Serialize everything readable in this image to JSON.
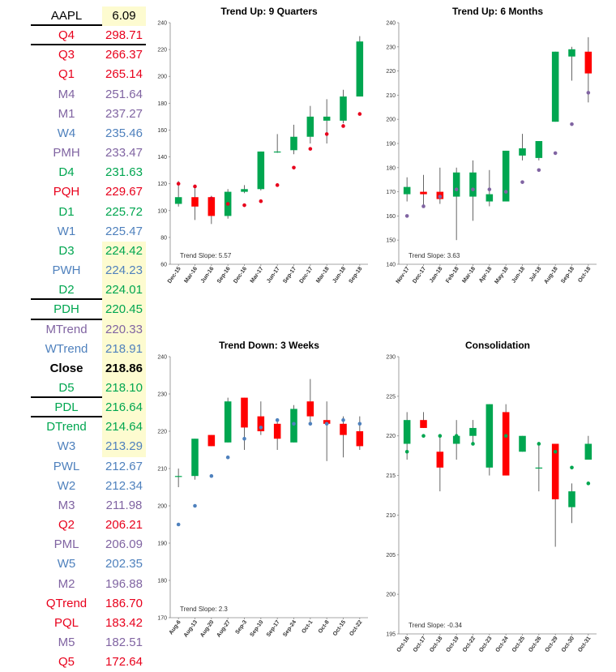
{
  "levels": {
    "header": {
      "name": "AAPL",
      "value": "6.09"
    },
    "rows": [
      {
        "name": "Q4",
        "value": "298.71",
        "color": "#e8001c",
        "hl": false,
        "sep": true
      },
      {
        "name": "Q3",
        "value": "266.37",
        "color": "#e8001c",
        "hl": false
      },
      {
        "name": "Q1",
        "value": "265.14",
        "color": "#e8001c",
        "hl": false
      },
      {
        "name": "M4",
        "value": "251.64",
        "color": "#8064a2",
        "hl": false
      },
      {
        "name": "M1",
        "value": "237.27",
        "color": "#8064a2",
        "hl": false
      },
      {
        "name": "W4",
        "value": "235.46",
        "color": "#4f81bd",
        "hl": false
      },
      {
        "name": "PMH",
        "value": "233.47",
        "color": "#8064a2",
        "hl": false
      },
      {
        "name": "D4",
        "value": "231.63",
        "color": "#00a650",
        "hl": false
      },
      {
        "name": "PQH",
        "value": "229.67",
        "color": "#e8001c",
        "hl": false
      },
      {
        "name": "D1",
        "value": "225.72",
        "color": "#00a650",
        "hl": false
      },
      {
        "name": "W1",
        "value": "225.47",
        "color": "#4f81bd",
        "hl": false
      },
      {
        "name": "D3",
        "value": "224.42",
        "color": "#00a650",
        "hl": true
      },
      {
        "name": "PWH",
        "value": "224.23",
        "color": "#4f81bd",
        "hl": true
      },
      {
        "name": "D2",
        "value": "224.01",
        "color": "#00a650",
        "hl": true,
        "sep": true
      },
      {
        "name": "PDH",
        "value": "220.45",
        "color": "#00a650",
        "hl": true,
        "sep": true
      },
      {
        "name": "MTrend",
        "value": "220.33",
        "color": "#8064a2",
        "hl": true
      },
      {
        "name": "WTrend",
        "value": "218.91",
        "color": "#4f81bd",
        "hl": true
      },
      {
        "name": "Close",
        "value": "218.86",
        "color": "#000000",
        "hl": true,
        "bold": true
      },
      {
        "name": "D5",
        "value": "218.10",
        "color": "#00a650",
        "hl": true,
        "sep": true
      },
      {
        "name": "PDL",
        "value": "216.64",
        "color": "#00a650",
        "hl": true,
        "sep": true
      },
      {
        "name": "DTrend",
        "value": "214.64",
        "color": "#00a650",
        "hl": true
      },
      {
        "name": "W3",
        "value": "213.29",
        "color": "#4f81bd",
        "hl": true
      },
      {
        "name": "PWL",
        "value": "212.67",
        "color": "#4f81bd",
        "hl": false
      },
      {
        "name": "W2",
        "value": "212.34",
        "color": "#4f81bd",
        "hl": false
      },
      {
        "name": "M3",
        "value": "211.98",
        "color": "#8064a2",
        "hl": false
      },
      {
        "name": "Q2",
        "value": "206.21",
        "color": "#e8001c",
        "hl": false
      },
      {
        "name": "PML",
        "value": "206.09",
        "color": "#8064a2",
        "hl": false
      },
      {
        "name": "W5",
        "value": "202.35",
        "color": "#4f81bd",
        "hl": false
      },
      {
        "name": "M2",
        "value": "196.88",
        "color": "#8064a2",
        "hl": false
      },
      {
        "name": "QTrend",
        "value": "186.70",
        "color": "#e8001c",
        "hl": false
      },
      {
        "name": "PQL",
        "value": "183.42",
        "color": "#e8001c",
        "hl": false
      },
      {
        "name": "M5",
        "value": "182.51",
        "color": "#8064a2",
        "hl": false
      },
      {
        "name": "Q5",
        "value": "172.64",
        "color": "#e8001c",
        "hl": false
      }
    ]
  },
  "colors": {
    "up": "#00a650",
    "down": "#ff0000",
    "quarter_dot": "#e8001c",
    "month_dot": "#8064a2",
    "week_dot": "#4f81bd",
    "day_dot": "#00a650"
  },
  "chart_data": [
    {
      "type": "candlestick",
      "title": "Trend Up: 9 Quarters",
      "annotation": "Trend Slope: 5.57",
      "ylim": [
        60,
        240
      ],
      "ytick_step": 20,
      "dot_color": "#e8001c",
      "categories": [
        "Dec-15",
        "Mar-16",
        "Jun-16",
        "Sep-16",
        "Dec-16",
        "Mar-17",
        "Jun-17",
        "Sep-17",
        "Dec-17",
        "Mar-18",
        "Jun-18",
        "Sep-18"
      ],
      "open": [
        105,
        110,
        110,
        96,
        114,
        116,
        144,
        145,
        155,
        167,
        167,
        185
      ],
      "high": [
        122,
        118,
        111,
        116,
        119,
        144,
        157,
        164,
        178,
        183,
        190,
        230
      ],
      "low": [
        103,
        93,
        90,
        94,
        113,
        115,
        143,
        142,
        150,
        150,
        165,
        185
      ],
      "close": [
        110,
        103,
        96,
        114,
        116,
        144,
        144,
        155,
        170,
        170,
        185,
        226
      ],
      "dots": [
        120,
        118,
        109,
        105,
        104,
        107,
        119,
        132,
        146,
        157,
        163,
        172
      ]
    },
    {
      "type": "candlestick",
      "title": "Trend Up: 6 Months",
      "annotation": "Trend Slope: 3.63",
      "ylim": [
        140,
        240
      ],
      "ytick_step": 10,
      "dot_color": "#8064a2",
      "categories": [
        "Nov-17",
        "Dec-17",
        "Jan-18",
        "Feb-18",
        "Mar-18",
        "Apr-18",
        "May-18",
        "Jun-18",
        "Jul-18",
        "Aug-18",
        "Sep-18",
        "Oct-18"
      ],
      "open": [
        169,
        170,
        170,
        168,
        168,
        166,
        166,
        185,
        184,
        199,
        226,
        228
      ],
      "high": [
        176,
        177,
        180,
        180,
        183,
        179,
        187,
        194,
        191,
        228,
        230,
        234
      ],
      "low": [
        166,
        164,
        165,
        150,
        158,
        164,
        166,
        183,
        183,
        199,
        216,
        207
      ],
      "close": [
        172,
        169,
        167,
        178,
        178,
        169,
        187,
        188,
        191,
        228,
        229,
        219
      ],
      "dots": [
        160,
        164,
        168,
        171,
        171,
        171,
        170,
        174,
        179,
        186,
        198,
        211
      ]
    },
    {
      "type": "candlestick",
      "title": "Trend Down: 3 Weeks",
      "annotation": "Trend Slope: 2.3",
      "ylim": [
        170,
        240
      ],
      "ytick_step": 10,
      "dot_color": "#4f81bd",
      "categories": [
        "Aug-6",
        "Aug-13",
        "Aug-20",
        "Aug-27",
        "Sep-3",
        "Sep-10",
        "Sep-17",
        "Sep-24",
        "Oct-1",
        "Oct-8",
        "Oct-15",
        "Oct-22"
      ],
      "open": [
        208,
        208,
        219,
        217,
        229,
        224,
        222,
        217,
        228,
        223,
        222,
        220
      ],
      "high": [
        210,
        218,
        219,
        229,
        229,
        228,
        223,
        227,
        234,
        228,
        224,
        224
      ],
      "low": [
        205,
        207,
        216,
        217,
        215,
        219,
        215,
        217,
        222,
        212,
        213,
        215
      ],
      "close": [
        208,
        218,
        216,
        228,
        221,
        220,
        218,
        226,
        224,
        222,
        219,
        216
      ],
      "dots": [
        195,
        200,
        208,
        213,
        218,
        221,
        223,
        222,
        222,
        222,
        223,
        222
      ]
    },
    {
      "type": "candlestick",
      "title": "Consolidation",
      "annotation": "Trend Slope: -0.34",
      "ylim": [
        195,
        230
      ],
      "ytick_step": 5,
      "dot_color": "#00a650",
      "categories": [
        "Oct-16",
        "Oct-17",
        "Oct-18",
        "Oct-19",
        "Oct-22",
        "Oct-23",
        "Oct-24",
        "Oct-25",
        "Oct-26",
        "Oct-29",
        "Oct-30",
        "Oct-31"
      ],
      "open": [
        219,
        222,
        218,
        219,
        220,
        216,
        223,
        218,
        216,
        219,
        211,
        217
      ],
      "high": [
        223,
        223,
        220,
        222,
        222,
        224,
        224,
        220,
        219,
        219,
        214,
        220
      ],
      "low": [
        217,
        221,
        213,
        217,
        219,
        215,
        215,
        218,
        213,
        206,
        209,
        217
      ],
      "close": [
        222,
        221,
        216,
        220,
        221,
        224,
        215,
        220,
        216,
        212,
        213,
        219
      ],
      "dots": [
        218,
        220,
        220,
        220,
        219,
        219,
        220,
        219,
        219,
        218,
        216,
        214
      ]
    }
  ]
}
